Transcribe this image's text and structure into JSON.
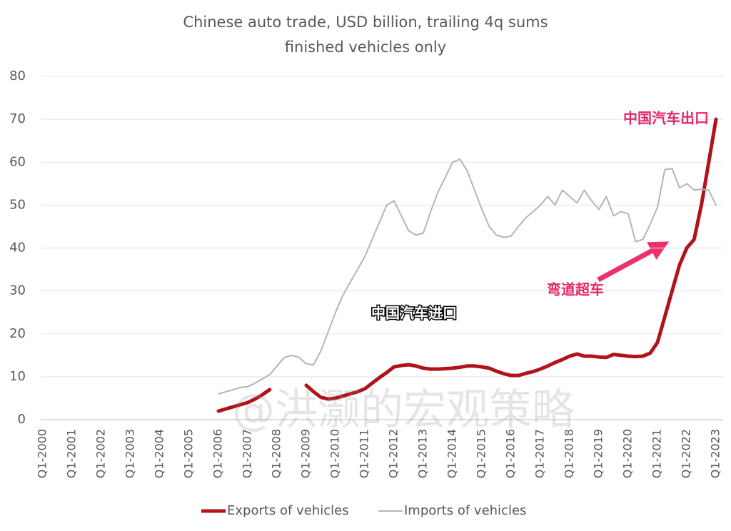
{
  "chart_data": {
    "type": "line",
    "title": "Chinese auto trade, USD billion, trailing 4q sums",
    "subtitle": "finished vehicles only",
    "categories": [
      "Q1-2000",
      null,
      null,
      null,
      "Q1-2001",
      null,
      null,
      null,
      "Q1-2002",
      null,
      null,
      null,
      "Q1-2003",
      null,
      null,
      null,
      "Q1-2004",
      null,
      null,
      null,
      "Q1-2005",
      null,
      null,
      null,
      "Q1-2006",
      null,
      null,
      null,
      "Q1-2007",
      null,
      null,
      null,
      "Q1-2008",
      null,
      null,
      null,
      "Q1-2009",
      null,
      null,
      null,
      "Q1-2010",
      null,
      null,
      null,
      "Q1-2011",
      null,
      null,
      null,
      "Q1-2012",
      null,
      null,
      null,
      "Q1-2013",
      null,
      null,
      null,
      "Q1-2014",
      null,
      null,
      null,
      "Q1-2015",
      null,
      null,
      null,
      "Q1-2016",
      null,
      null,
      null,
      "Q1-2017",
      null,
      null,
      null,
      "Q1-2018",
      null,
      null,
      null,
      "Q1-2019",
      null,
      null,
      null,
      "Q1-2020",
      null,
      null,
      null,
      "Q1-2021",
      null,
      null,
      null,
      "Q1-2022",
      null,
      null,
      null,
      "Q1-2023"
    ],
    "series": [
      {
        "name": "Exports of vehicles",
        "color": "#b0141a",
        "width": 5,
        "values": [
          null,
          null,
          null,
          null,
          null,
          null,
          null,
          null,
          null,
          null,
          null,
          null,
          null,
          null,
          null,
          null,
          null,
          null,
          null,
          null,
          null,
          null,
          null,
          null,
          2,
          2.5,
          3,
          3.5,
          4,
          4.8,
          5.8,
          7,
          null,
          null,
          null,
          null,
          8,
          6.5,
          5.2,
          4.8,
          5,
          5.5,
          6,
          6.5,
          7.2,
          8.5,
          9.8,
          11,
          12.3,
          12.6,
          12.8,
          12.5,
          12,
          11.8,
          11.8,
          11.9,
          12,
          12.2,
          12.5,
          12.5,
          12.3,
          12,
          11.3,
          10.7,
          10.3,
          10.3,
          10.8,
          11.2,
          11.8,
          12.5,
          13.3,
          14,
          14.8,
          15.3,
          14.8,
          14.8,
          14.6,
          14.5,
          15.2,
          15,
          14.8,
          14.7,
          14.8,
          15.5,
          18,
          24,
          30,
          36,
          40,
          42,
          50,
          60,
          70
        ]
      },
      {
        "name": "Imports of vehicles",
        "color": "#b5b5b5",
        "width": 2,
        "values": [
          null,
          null,
          null,
          null,
          null,
          null,
          null,
          null,
          null,
          null,
          null,
          null,
          null,
          null,
          null,
          null,
          null,
          null,
          null,
          null,
          null,
          null,
          null,
          null,
          6,
          6.5,
          7,
          7.5,
          7.7,
          8.5,
          9.5,
          10.5,
          12.5,
          14.5,
          15,
          14.5,
          13,
          12.8,
          16,
          20.5,
          25,
          29,
          32,
          35,
          38,
          42,
          46,
          50,
          51,
          47.5,
          44,
          43,
          43.5,
          48.5,
          53,
          56.5,
          60,
          60.7,
          58,
          53.5,
          49,
          45,
          43,
          42.5,
          42.8,
          45,
          47,
          48.5,
          50,
          52,
          50,
          53.5,
          52,
          50.5,
          53.5,
          51,
          49,
          52,
          47.5,
          48.5,
          48,
          41.5,
          42,
          45.5,
          49.5,
          58.3,
          58.5,
          54,
          55,
          53.5,
          53.7,
          53.5,
          50
        ]
      }
    ],
    "ylim": [
      0,
      80
    ],
    "yticks": [
      0,
      10,
      20,
      30,
      40,
      50,
      60,
      70,
      80
    ],
    "grid": true,
    "annotations": [
      "中国汽车出口",
      "弯道超车",
      "中国汽车进口",
      "@洪灏的宏观策略"
    ]
  }
}
